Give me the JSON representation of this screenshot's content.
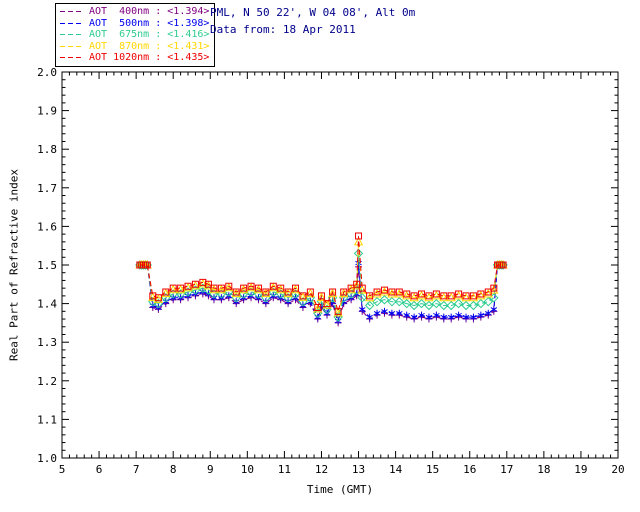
{
  "window": {
    "background": "#ffffff"
  },
  "header": {
    "site_line": "PML, N 50 22', W 04 08', Alt 0m",
    "date_line": "Data from: 18 Apr 2011",
    "color": "#00008b"
  },
  "chart_data": {
    "type": "line",
    "title": "",
    "xlabel": "Time (GMT)",
    "ylabel": "Real Part of Refractive index",
    "xlim": [
      5,
      20
    ],
    "ylim": [
      1.0,
      2.0
    ],
    "xticks": [
      5,
      6,
      7,
      8,
      9,
      10,
      11,
      12,
      13,
      14,
      15,
      16,
      17,
      18,
      19,
      20
    ],
    "xticklabels": [
      "5",
      "6",
      "7",
      "8",
      "9",
      "10",
      "11",
      "12",
      "13",
      "14",
      "15",
      "16",
      "17",
      "18",
      "19",
      "20"
    ],
    "yticks": [
      1.0,
      1.1,
      1.2,
      1.3,
      1.4,
      1.5,
      1.6,
      1.7,
      1.8,
      1.9,
      2.0
    ],
    "yticklabels": [
      "1.0",
      "1.1",
      "1.2",
      "1.3",
      "1.4",
      "1.5",
      "1.6",
      "1.7",
      "1.8",
      "1.9",
      "2.0"
    ],
    "grid": false,
    "axis_color": "#000000",
    "legend_position": "top-left-outside",
    "x": [
      7.1,
      7.15,
      7.2,
      7.25,
      7.3,
      7.45,
      7.6,
      7.8,
      8.0,
      8.2,
      8.4,
      8.6,
      8.8,
      8.95,
      9.1,
      9.3,
      9.5,
      9.7,
      9.9,
      10.1,
      10.3,
      10.5,
      10.7,
      10.9,
      11.1,
      11.3,
      11.5,
      11.7,
      11.9,
      12.0,
      12.15,
      12.3,
      12.45,
      12.6,
      12.8,
      12.95,
      13.0,
      13.1,
      13.3,
      13.5,
      13.7,
      13.9,
      14.1,
      14.3,
      14.5,
      14.7,
      14.9,
      15.1,
      15.3,
      15.5,
      15.7,
      15.9,
      16.1,
      16.3,
      16.5,
      16.65,
      16.75,
      16.8,
      16.85,
      16.9
    ],
    "series": [
      {
        "name": "AOT  400nm",
        "mean": "<1.394>",
        "color": "#800080",
        "marker": "plus",
        "dash": "5,3",
        "values": [
          1.5,
          1.5,
          1.5,
          1.5,
          1.5,
          1.39,
          1.385,
          1.4,
          1.41,
          1.41,
          1.415,
          1.42,
          1.425,
          1.42,
          1.41,
          1.41,
          1.415,
          1.4,
          1.41,
          1.415,
          1.41,
          1.4,
          1.415,
          1.41,
          1.4,
          1.41,
          1.39,
          1.4,
          1.36,
          1.39,
          1.37,
          1.4,
          1.35,
          1.4,
          1.41,
          1.42,
          1.495,
          1.38,
          1.36,
          1.37,
          1.375,
          1.37,
          1.37,
          1.365,
          1.36,
          1.365,
          1.36,
          1.365,
          1.36,
          1.36,
          1.365,
          1.36,
          1.36,
          1.365,
          1.37,
          1.38,
          1.5,
          1.5,
          1.5,
          1.5
        ]
      },
      {
        "name": "AOT  500nm",
        "mean": "<1.398>",
        "color": "#0000ee",
        "marker": "asterisk",
        "dash": "5,3",
        "values": [
          1.5,
          1.5,
          1.5,
          1.5,
          1.5,
          1.395,
          1.39,
          1.405,
          1.415,
          1.415,
          1.42,
          1.425,
          1.43,
          1.425,
          1.415,
          1.415,
          1.42,
          1.405,
          1.415,
          1.42,
          1.415,
          1.405,
          1.42,
          1.415,
          1.405,
          1.415,
          1.395,
          1.405,
          1.365,
          1.395,
          1.375,
          1.405,
          1.355,
          1.405,
          1.415,
          1.425,
          1.505,
          1.385,
          1.365,
          1.375,
          1.38,
          1.375,
          1.375,
          1.37,
          1.365,
          1.37,
          1.365,
          1.37,
          1.365,
          1.365,
          1.37,
          1.365,
          1.365,
          1.37,
          1.375,
          1.385,
          1.5,
          1.5,
          1.5,
          1.5
        ]
      },
      {
        "name": "AOT  675nm",
        "mean": "<1.416>",
        "color": "#2ecc90",
        "marker": "diamond",
        "dash": "5,3",
        "values": [
          1.5,
          1.5,
          1.5,
          1.5,
          1.5,
          1.405,
          1.4,
          1.415,
          1.425,
          1.425,
          1.43,
          1.435,
          1.44,
          1.435,
          1.425,
          1.425,
          1.43,
          1.415,
          1.425,
          1.43,
          1.425,
          1.415,
          1.43,
          1.425,
          1.415,
          1.425,
          1.405,
          1.415,
          1.375,
          1.405,
          1.385,
          1.415,
          1.365,
          1.415,
          1.425,
          1.435,
          1.53,
          1.415,
          1.395,
          1.405,
          1.41,
          1.405,
          1.405,
          1.4,
          1.395,
          1.4,
          1.395,
          1.4,
          1.395,
          1.395,
          1.4,
          1.395,
          1.395,
          1.4,
          1.405,
          1.415,
          1.5,
          1.5,
          1.5,
          1.5
        ]
      },
      {
        "name": "AOT  870nm",
        "mean": "<1.431>",
        "color": "#ffd700",
        "marker": "triangle",
        "dash": "5,3",
        "values": [
          1.5,
          1.5,
          1.5,
          1.5,
          1.5,
          1.416,
          1.411,
          1.426,
          1.436,
          1.436,
          1.441,
          1.446,
          1.451,
          1.446,
          1.436,
          1.436,
          1.441,
          1.426,
          1.436,
          1.441,
          1.436,
          1.426,
          1.441,
          1.436,
          1.426,
          1.436,
          1.416,
          1.426,
          1.386,
          1.416,
          1.396,
          1.426,
          1.376,
          1.426,
          1.436,
          1.446,
          1.56,
          1.435,
          1.415,
          1.425,
          1.43,
          1.425,
          1.425,
          1.42,
          1.415,
          1.42,
          1.415,
          1.42,
          1.415,
          1.415,
          1.42,
          1.415,
          1.415,
          1.42,
          1.425,
          1.435,
          1.5,
          1.5,
          1.5,
          1.5
        ]
      },
      {
        "name": "AOT 1020nm",
        "mean": "<1.435>",
        "color": "#ee0000",
        "marker": "square",
        "dash": "5,3",
        "values": [
          1.5,
          1.5,
          1.5,
          1.5,
          1.5,
          1.42,
          1.415,
          1.43,
          1.44,
          1.44,
          1.445,
          1.45,
          1.455,
          1.45,
          1.44,
          1.44,
          1.445,
          1.43,
          1.44,
          1.445,
          1.44,
          1.43,
          1.445,
          1.44,
          1.43,
          1.44,
          1.42,
          1.43,
          1.39,
          1.42,
          1.4,
          1.43,
          1.38,
          1.43,
          1.44,
          1.45,
          1.575,
          1.44,
          1.42,
          1.43,
          1.435,
          1.43,
          1.43,
          1.425,
          1.42,
          1.425,
          1.42,
          1.425,
          1.42,
          1.42,
          1.425,
          1.42,
          1.42,
          1.425,
          1.43,
          1.44,
          1.5,
          1.5,
          1.5,
          1.5
        ]
      }
    ]
  }
}
